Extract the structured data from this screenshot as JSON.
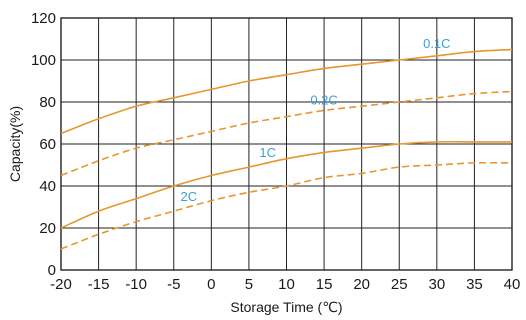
{
  "chart_data": {
    "type": "line",
    "xlabel": "Storage Time (℃)",
    "ylabel": "Capacity(%)",
    "xlim": [
      -20,
      40
    ],
    "ylim": [
      0,
      120
    ],
    "x_ticks": [
      "-20",
      "-15",
      "-10",
      "-5",
      "0",
      "5",
      "10",
      "15",
      "20",
      "25",
      "30",
      "35",
      "40"
    ],
    "y_ticks": [
      "0",
      "20",
      "40",
      "60",
      "80",
      "100",
      "120"
    ],
    "grid": true,
    "line_color": "#e8962e",
    "label_color": "#3aa0d8",
    "x": [
      -20,
      -15,
      -10,
      -5,
      0,
      5,
      10,
      15,
      20,
      25,
      30,
      35,
      40
    ],
    "series": [
      {
        "name": "0.1C",
        "style": "solid",
        "values": [
          65,
          72,
          78,
          82,
          86,
          90,
          93,
          96,
          98,
          100,
          102,
          104,
          105
        ]
      },
      {
        "name": "0.2C",
        "style": "dashed",
        "values": [
          45,
          52,
          58,
          62,
          66,
          70,
          73,
          76,
          78,
          80,
          82,
          84,
          85
        ]
      },
      {
        "name": "1C",
        "style": "solid",
        "values": [
          20,
          28,
          34,
          40,
          45,
          49,
          53,
          56,
          58,
          60,
          61,
          61,
          61
        ]
      },
      {
        "name": "2C",
        "style": "dashed",
        "values": [
          10,
          17,
          23,
          28,
          33,
          37,
          40,
          44,
          46,
          49,
          50,
          51,
          51
        ]
      }
    ]
  }
}
